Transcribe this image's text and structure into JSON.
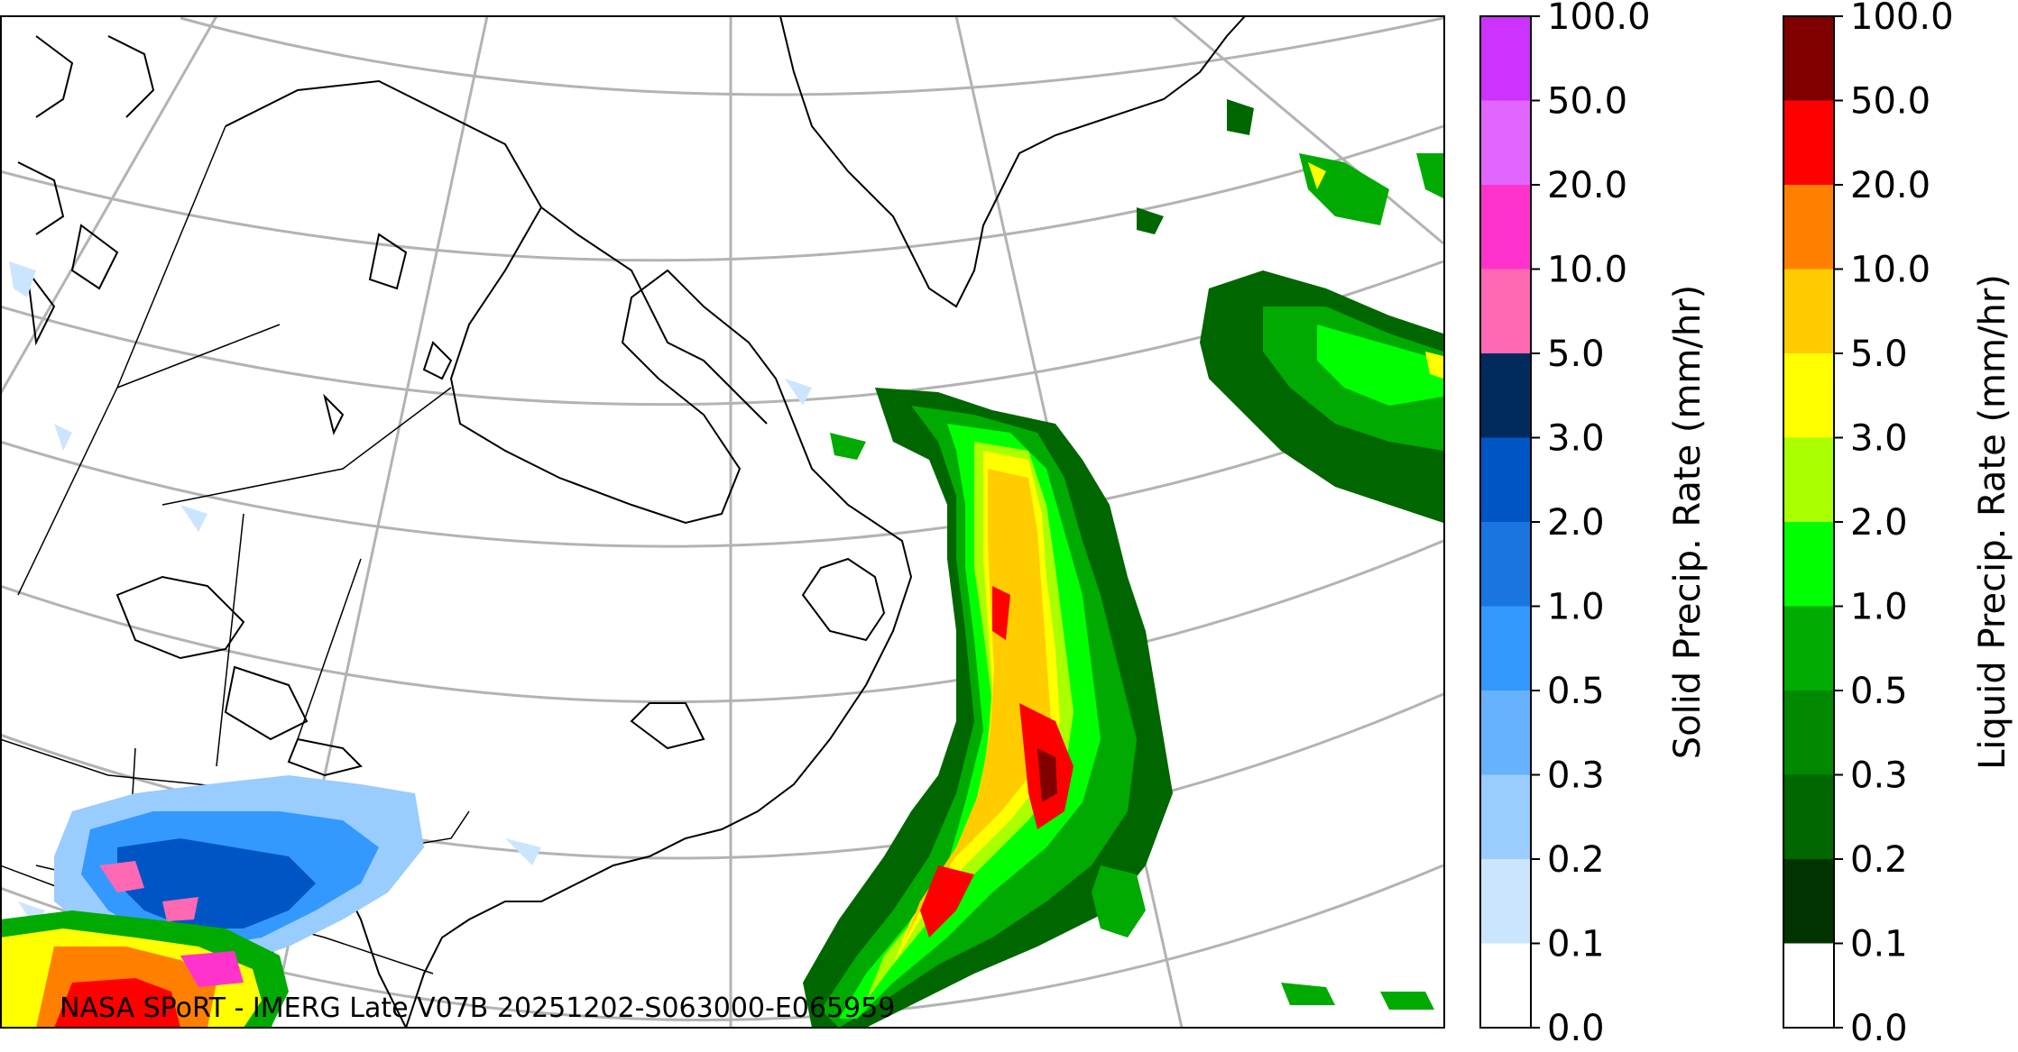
{
  "credit": "NASA SPoRT - IMERG Late V07B 20251202-S063000-E065959",
  "colorbars": {
    "solid": {
      "title": "Solid Precip. Rate (mm/hr)",
      "ticks": [
        "0.0",
        "0.1",
        "0.2",
        "0.3",
        "0.5",
        "1.0",
        "2.0",
        "3.0",
        "5.0",
        "10.0",
        "20.0",
        "50.0",
        "100.0"
      ],
      "colors": [
        "#ffffff",
        "#cce5ff",
        "#99ccff",
        "#66b2ff",
        "#3399ff",
        "#1a75e0",
        "#0055c4",
        "#002b5c",
        "#ff69b4",
        "#ff33cc",
        "#e066ff",
        "#cc33ff",
        "#9900cc"
      ]
    },
    "liquid": {
      "title": "Liquid Precip. Rate (mm/hr)",
      "ticks": [
        "0.0",
        "0.1",
        "0.2",
        "0.3",
        "0.5",
        "1.0",
        "2.0",
        "3.0",
        "5.0",
        "10.0",
        "20.0",
        "50.0",
        "100.0"
      ],
      "colors": [
        "#ffffff",
        "#003300",
        "#006600",
        "#008800",
        "#00aa00",
        "#00ff00",
        "#aaff00",
        "#ffff00",
        "#ffcc00",
        "#ff8000",
        "#ff0000",
        "#800000",
        "#400000"
      ]
    }
  },
  "map": {
    "graticule_color": "#b3b3b3",
    "coastline_color": "#000000"
  }
}
